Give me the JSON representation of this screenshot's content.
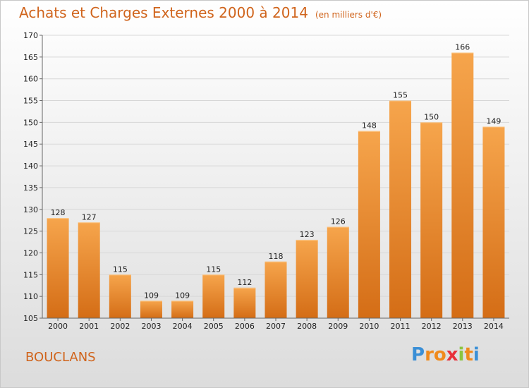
{
  "chart_title": "Achats et Charges Externes 2000 à 2014",
  "chart_unit": "(en milliers d'€)",
  "place_name": "BOUCLANS",
  "logo": {
    "letters": [
      "P",
      "r",
      "o",
      "x",
      "i",
      "t",
      "i"
    ],
    "colors": [
      "#3a8fd6",
      "#f08a1c",
      "#f08a1c",
      "#e8303a",
      "#8bc53f",
      "#f08a1c",
      "#3a8fd6"
    ]
  },
  "colors": {
    "bar_top": "#f6a54c",
    "bar_bottom": "#d46d16",
    "title": "#d0641c"
  },
  "chart_data": {
    "type": "bar",
    "categories": [
      "2000",
      "2001",
      "2002",
      "2003",
      "2004",
      "2005",
      "2006",
      "2007",
      "2008",
      "2009",
      "2010",
      "2011",
      "2012",
      "2013",
      "2014"
    ],
    "values": [
      128,
      127,
      115,
      109,
      109,
      115,
      112,
      118,
      123,
      126,
      148,
      155,
      150,
      166,
      149
    ],
    "ylim": [
      105,
      170
    ],
    "yticks": [
      105,
      110,
      115,
      120,
      125,
      130,
      135,
      140,
      145,
      150,
      155,
      160,
      165,
      170
    ],
    "grid": true
  }
}
